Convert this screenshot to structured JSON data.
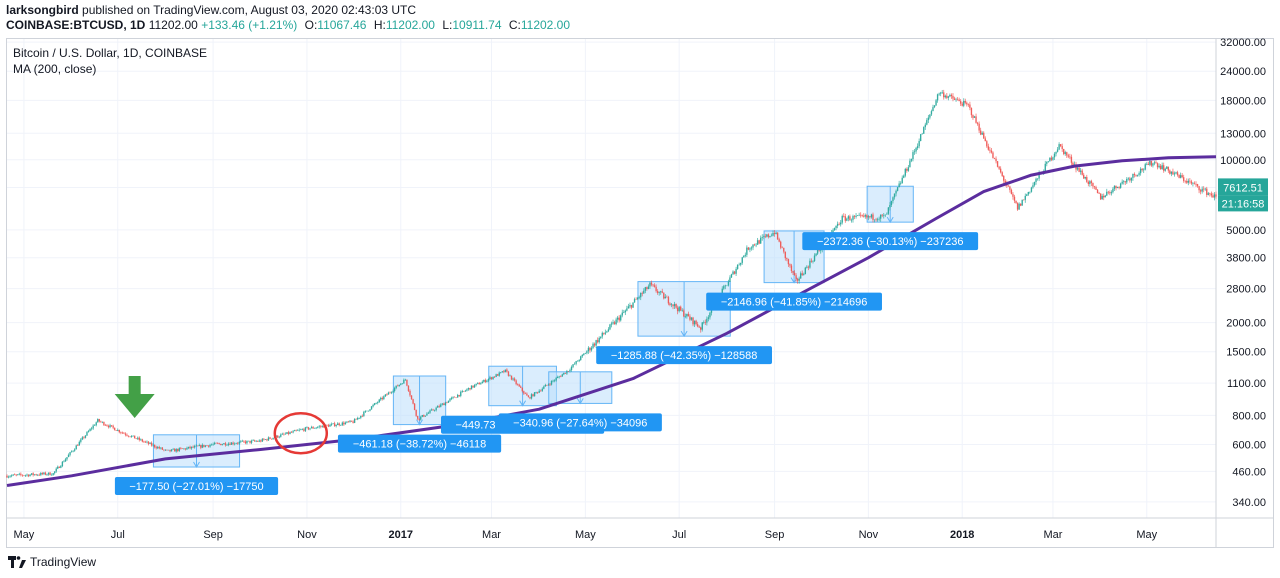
{
  "header": {
    "publisher": "larksongbird",
    "published_text": "published on TradingView.com, August 03, 2020 02:43:03 UTC",
    "symbol": "COINBASE:BTCUSD, 1D",
    "price": "11202.00",
    "change": "+133.46 (+1.21%)",
    "o_label": "O:",
    "o_value": "11067.46",
    "h_label": "H:",
    "h_value": "11202.00",
    "l_label": "L:",
    "l_value": "10911.74",
    "c_label": "C:",
    "c_value": "11202.00"
  },
  "legend": {
    "title": "Bitcoin / U.S. Dollar, 1D, COINBASE",
    "ma": "MA (200, close)"
  },
  "footer": {
    "brand": "TradingView"
  },
  "colors": {
    "ma_line": "#5b2d9e",
    "candle_up": "#26a69a",
    "candle_down": "#ef5350",
    "box_fill": "#bbdefb",
    "box_stroke": "#64b5f6",
    "label_bg": "#2196f3",
    "arrow": "#43a047",
    "circle": "#e53935"
  },
  "chart_data": {
    "type": "line",
    "y_scale": "log",
    "ylim": [
      290,
      33000
    ],
    "y_ticks": [
      32000,
      24000,
      18000,
      13000,
      10000,
      7600,
      5000,
      3800,
      2800,
      2000,
      1500,
      1100,
      800,
      600,
      460,
      340
    ],
    "y_tick_labels": [
      "32000.00",
      "24000.00",
      "18000.00",
      "13000.00",
      "10000.00",
      "7600.00",
      "5000.00",
      "3800.00",
      "2800.00",
      "2000.00",
      "1500.00",
      "1100.00",
      "800.00",
      "600.00",
      "460.00",
      "340.00"
    ],
    "x_ticks": [
      "May",
      "Jul",
      "Sep",
      "Nov",
      "2017",
      "Mar",
      "May",
      "Jul",
      "Sep",
      "Nov",
      "2018",
      "Mar",
      "May"
    ],
    "x_tick_dates": [
      "2016-05-01",
      "2016-07-01",
      "2016-09-01",
      "2016-11-01",
      "2017-01-01",
      "2017-03-01",
      "2017-05-01",
      "2017-07-01",
      "2017-09-01",
      "2017-11-01",
      "2018-01-01",
      "2018-03-01",
      "2018-05-01"
    ],
    "xlim": [
      "2016-04-20",
      "2018-06-15"
    ],
    "last_price_label": "7612.51",
    "countdown_label": "21:16:58",
    "last_price": 7612.51,
    "series": [
      {
        "name": "MA (200, close)",
        "x": [
          "2016-04-20",
          "2016-06-01",
          "2016-08-01",
          "2016-10-01",
          "2016-12-01",
          "2017-02-01",
          "2017-04-01",
          "2017-06-01",
          "2017-08-01",
          "2017-09-15",
          "2017-11-01",
          "2017-12-15",
          "2018-01-15",
          "2018-02-15",
          "2018-03-15",
          "2018-04-15",
          "2018-05-15",
          "2018-06-15"
        ],
        "values": [
          400,
          440,
          520,
          570,
          630,
          720,
          850,
          1150,
          1800,
          2600,
          3800,
          5600,
          7300,
          8600,
          9400,
          9900,
          10200,
          10300
        ]
      },
      {
        "name": "BTCUSD price",
        "x": [
          "2016-04-20",
          "2016-05-20",
          "2016-06-18",
          "2016-07-05",
          "2016-08-02",
          "2016-09-01",
          "2016-10-01",
          "2016-10-31",
          "2016-12-01",
          "2017-01-04",
          "2017-01-12",
          "2017-02-15",
          "2017-03-10",
          "2017-03-25",
          "2017-04-20",
          "2017-05-20",
          "2017-06-12",
          "2017-07-15",
          "2017-08-15",
          "2017-09-01",
          "2017-09-15",
          "2017-10-15",
          "2017-11-12",
          "2017-12-01",
          "2017-12-17",
          "2018-01-05",
          "2018-02-06",
          "2018-03-05",
          "2018-04-01",
          "2018-05-05",
          "2018-06-15"
        ],
        "values": [
          440,
          450,
          760,
          670,
          560,
          600,
          620,
          700,
          750,
          1140,
          770,
          1050,
          1240,
          950,
          1250,
          2000,
          2900,
          1900,
          4200,
          4900,
          3000,
          5600,
          5700,
          10900,
          19500,
          17000,
          6200,
          11500,
          6900,
          9800,
          6900
        ]
      }
    ],
    "annotations": [
      {
        "text": "−177.50 (−27.01%) −17750",
        "from": "2016-08-01",
        "to": "2016-08-31",
        "high": 660,
        "low": 480
      },
      {
        "text": "−461.18 (−38.72%) −46118",
        "from": "2017-01-04",
        "to": "2017-01-12",
        "high": 1180,
        "low": 730
      },
      {
        "text": "−449.73 (−34.96%) −44973",
        "from": "2017-03-07",
        "to": "2017-03-25",
        "high": 1300,
        "low": 880
      },
      {
        "text": "−340.96 (−27.64%) −34096",
        "from": "2017-04-15",
        "to": "2017-04-30",
        "high": 1230,
        "low": 900
      },
      {
        "text": "−1285.88 (−42.35%) −128588",
        "from": "2017-06-12",
        "to": "2017-07-16",
        "high": 3000,
        "low": 1750
      },
      {
        "text": "−2146.96 (−41.85%) −214696",
        "from": "2017-09-02",
        "to": "2017-09-15",
        "high": 4950,
        "low": 2970
      },
      {
        "text": "−2372.36 (−30.13%) −237236",
        "from": "2017-11-08",
        "to": "2017-11-12",
        "high": 7700,
        "low": 5400
      }
    ]
  }
}
